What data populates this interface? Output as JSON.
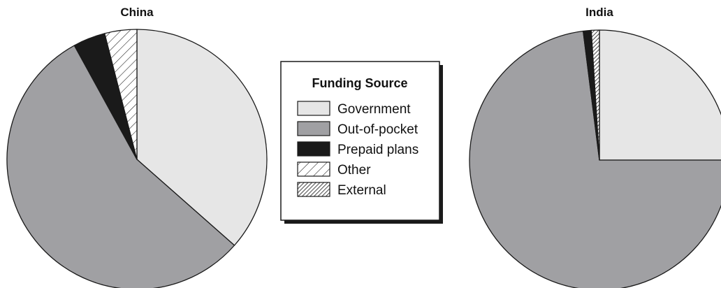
{
  "chart_data": [
    {
      "type": "pie",
      "title": "China",
      "categories": [
        "Government",
        "Out-of-pocket",
        "Prepaid plans",
        "Other",
        "External"
      ],
      "values": [
        36.5,
        55.5,
        4.0,
        4.0,
        0.0
      ]
    },
    {
      "type": "pie",
      "title": "India",
      "categories": [
        "Government",
        "Out-of-pocket",
        "Prepaid plans",
        "Other",
        "External"
      ],
      "values": [
        25.0,
        73.0,
        1.0,
        0.0,
        1.0
      ]
    }
  ],
  "legend": {
    "title": "Funding Source",
    "placement": "center",
    "items": [
      {
        "label": "Government",
        "fill": "#e6e6e6",
        "pattern": "none"
      },
      {
        "label": "Out-of-pocket",
        "fill": "#a0a0a3",
        "pattern": "none"
      },
      {
        "label": "Prepaid plans",
        "fill": "#1a1a1a",
        "pattern": "none"
      },
      {
        "label": "Other",
        "fill": "#ffffff",
        "pattern": "sparse-hatch"
      },
      {
        "label": "External",
        "fill": "#ffffff",
        "pattern": "dense-hatch"
      }
    ]
  }
}
